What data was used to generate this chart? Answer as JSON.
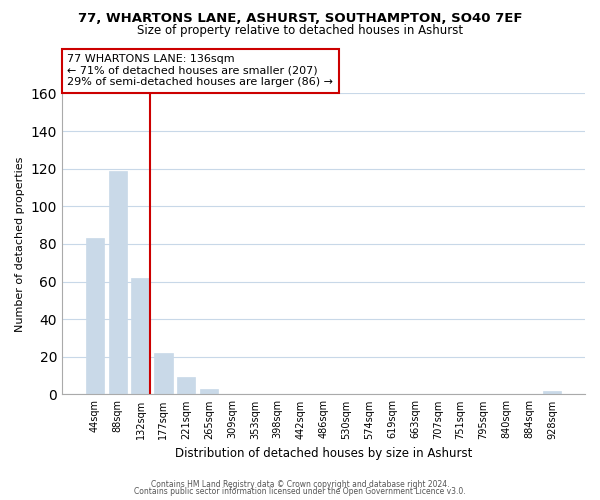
{
  "title": "77, WHARTONS LANE, ASHURST, SOUTHAMPTON, SO40 7EF",
  "subtitle": "Size of property relative to detached houses in Ashurst",
  "xlabel": "Distribution of detached houses by size in Ashurst",
  "ylabel": "Number of detached properties",
  "bar_labels": [
    "44sqm",
    "88sqm",
    "132sqm",
    "177sqm",
    "221sqm",
    "265sqm",
    "309sqm",
    "353sqm",
    "398sqm",
    "442sqm",
    "486sqm",
    "530sqm",
    "574sqm",
    "619sqm",
    "663sqm",
    "707sqm",
    "751sqm",
    "795sqm",
    "840sqm",
    "884sqm",
    "928sqm"
  ],
  "bar_values": [
    83,
    119,
    62,
    22,
    9,
    3,
    0,
    0,
    0,
    0,
    0,
    0,
    0,
    0,
    0,
    0,
    0,
    0,
    0,
    0,
    2
  ],
  "bar_color": "#c9d9e8",
  "bar_edge_color": "#c9d9e8",
  "property_line_index": 2,
  "property_line_color": "#cc0000",
  "annotation_line1": "77 WHARTONS LANE: 136sqm",
  "annotation_line2": "← 71% of detached houses are smaller (207)",
  "annotation_line3": "29% of semi-detached houses are larger (86) →",
  "annotation_box_color": "#ffffff",
  "annotation_box_edge": "#cc0000",
  "ylim": [
    0,
    160
  ],
  "yticks": [
    0,
    20,
    40,
    60,
    80,
    100,
    120,
    140,
    160
  ],
  "footer_line1": "Contains HM Land Registry data © Crown copyright and database right 2024.",
  "footer_line2": "Contains public sector information licensed under the Open Government Licence v3.0.",
  "background_color": "#ffffff",
  "grid_color": "#c8d8e8"
}
